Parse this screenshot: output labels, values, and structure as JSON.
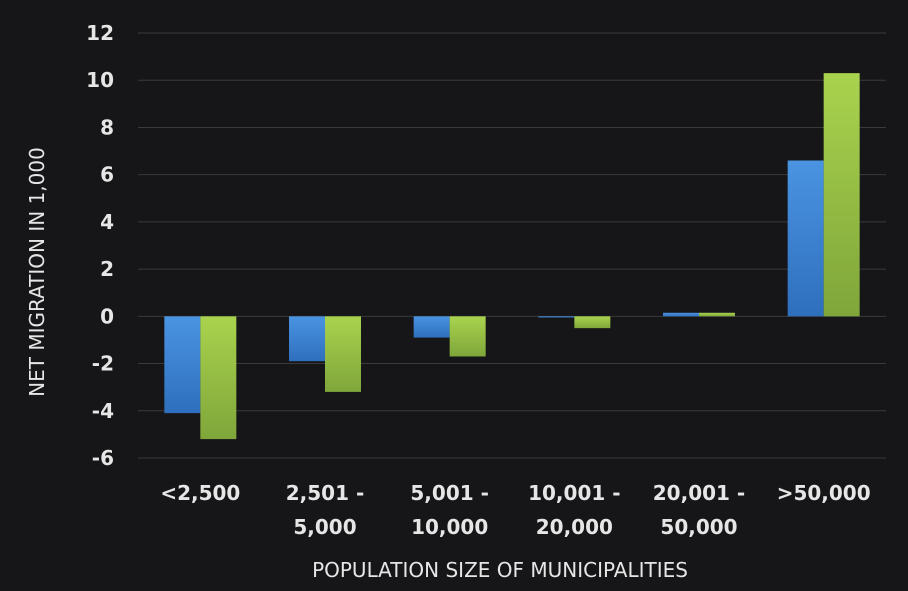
{
  "chart_data": {
    "type": "bar",
    "categories": [
      "<2,500",
      "2,501 -\n5,000",
      "5,001 -\n10,000",
      "10,001 -\n20,000",
      "20,001 -\n50,000",
      ">50,000"
    ],
    "series": [
      {
        "values": [
          -4.1,
          -1.9,
          -0.9,
          -0.05,
          0.15,
          6.6
        ]
      },
      {
        "values": [
          -5.2,
          -3.2,
          -1.7,
          -0.5,
          0.15,
          10.3
        ]
      }
    ],
    "xlabel": "POPULATION SIZE OF MUNICIPALITIES",
    "ylabel": "NET MIGRATION IN 1,000",
    "ylim": [
      -6,
      12
    ],
    "yticks": [
      -6,
      -4,
      -2,
      0,
      2,
      4,
      6,
      8,
      10,
      12
    ],
    "grid": true,
    "legend": "none",
    "colors": {
      "series1_top": "#4a94e2",
      "series1_bottom": "#2e6fbd",
      "series2_top": "#a9d34e",
      "series2_bottom": "#7fa63a",
      "grid": "#3a3a3a",
      "background": "#161618",
      "text": "#e6e6e6"
    }
  }
}
